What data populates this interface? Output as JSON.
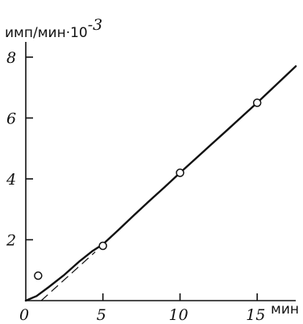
{
  "chart_data": {
    "type": "line",
    "title": "",
    "ylabel": "имп/мин",
    "ylabel_exponent_prefix": "·10",
    "ylabel_exponent": "-3",
    "xlabel": "мин",
    "xlim": [
      0,
      17.5
    ],
    "ylim": [
      0,
      8.5
    ],
    "x_ticks": [
      0,
      5,
      10,
      15
    ],
    "x_tick_labels": [
      "0",
      "5",
      "10",
      "15"
    ],
    "y_ticks": [
      2,
      4,
      6,
      8
    ],
    "y_tick_labels": [
      "2",
      "4",
      "6",
      "8"
    ],
    "grid": false,
    "legend": "none",
    "curve": {
      "x": [
        0,
        0.7,
        1.5,
        2.5,
        3.5,
        4.3,
        5,
        6,
        7,
        8,
        9,
        10,
        11,
        12,
        13,
        14,
        15,
        16,
        17.5
      ],
      "y": [
        0,
        0.15,
        0.45,
        0.85,
        1.3,
        1.62,
        1.85,
        2.32,
        2.8,
        3.27,
        3.73,
        4.2,
        4.66,
        5.12,
        5.58,
        6.04,
        6.5,
        6.98,
        7.7
      ]
    },
    "extrapolation": {
      "x": [
        1.0,
        4.5
      ],
      "y": [
        0,
        1.6
      ]
    },
    "points": {
      "x": [
        0.8,
        5,
        10,
        15
      ],
      "y": [
        0.82,
        1.8,
        4.2,
        6.5
      ]
    },
    "colors": {
      "line": "#111111",
      "background": "#ffffff"
    }
  }
}
